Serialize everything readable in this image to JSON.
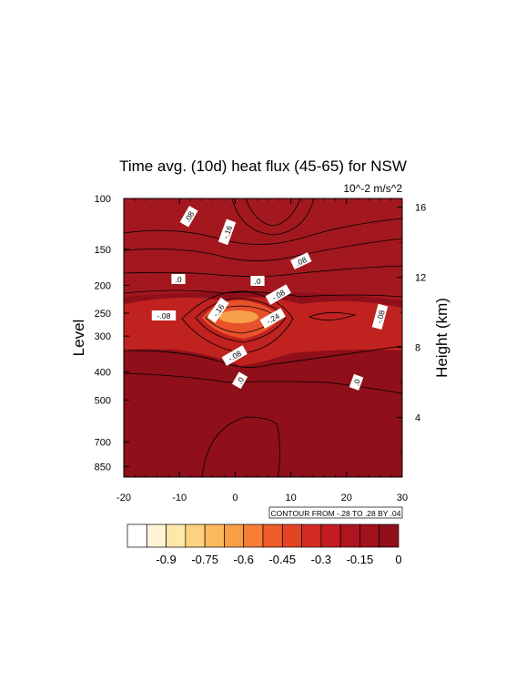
{
  "chart_data": {
    "type": "heatmap",
    "title": "Time avg. (10d) heat flux (45-65) for NSW",
    "units": "10^-2 m/s^2",
    "ylabel": "Level",
    "ylabel_right": "Height (km)",
    "xlabel": "",
    "xlim": [
      -20,
      30
    ],
    "x_ticks": [
      "-20",
      "-10",
      "0",
      "10",
      "20",
      "30"
    ],
    "y_ticks": [
      "100",
      "150",
      "200",
      "250",
      "300",
      "400",
      "500",
      "700",
      "850"
    ],
    "y_ticks_right": [
      "16",
      "12",
      "8",
      "4"
    ],
    "contour_info": "CONTOUR FROM -.28 TO .28 BY .04",
    "contour_labels": [
      ".08",
      "-.16",
      ".08",
      ".0",
      ".0",
      "-.08",
      "-.08",
      "-.16",
      "-.24",
      "-.08",
      "-.08",
      ".0",
      ".0"
    ],
    "colorbar": {
      "labels": [
        "-0.9",
        "-0.75",
        "-0.6",
        "-0.45",
        "-0.3",
        "-0.15",
        "0"
      ],
      "colors": [
        "#ffffff",
        "#fff5d6",
        "#fee8a8",
        "#fdd27f",
        "#fcb95c",
        "#f99d46",
        "#f67e35",
        "#ef5d2a",
        "#e24426",
        "#d32c22",
        "#c41c20",
        "#b0141e",
        "#9f111c",
        "#8f0f1a"
      ]
    },
    "field": {
      "background": "#8f0f1a",
      "upper": "#a3181e",
      "jet_band": "#c0221f",
      "jet_core": "#e8522a",
      "jet_center": "#f7a04a"
    },
    "grid": false
  }
}
